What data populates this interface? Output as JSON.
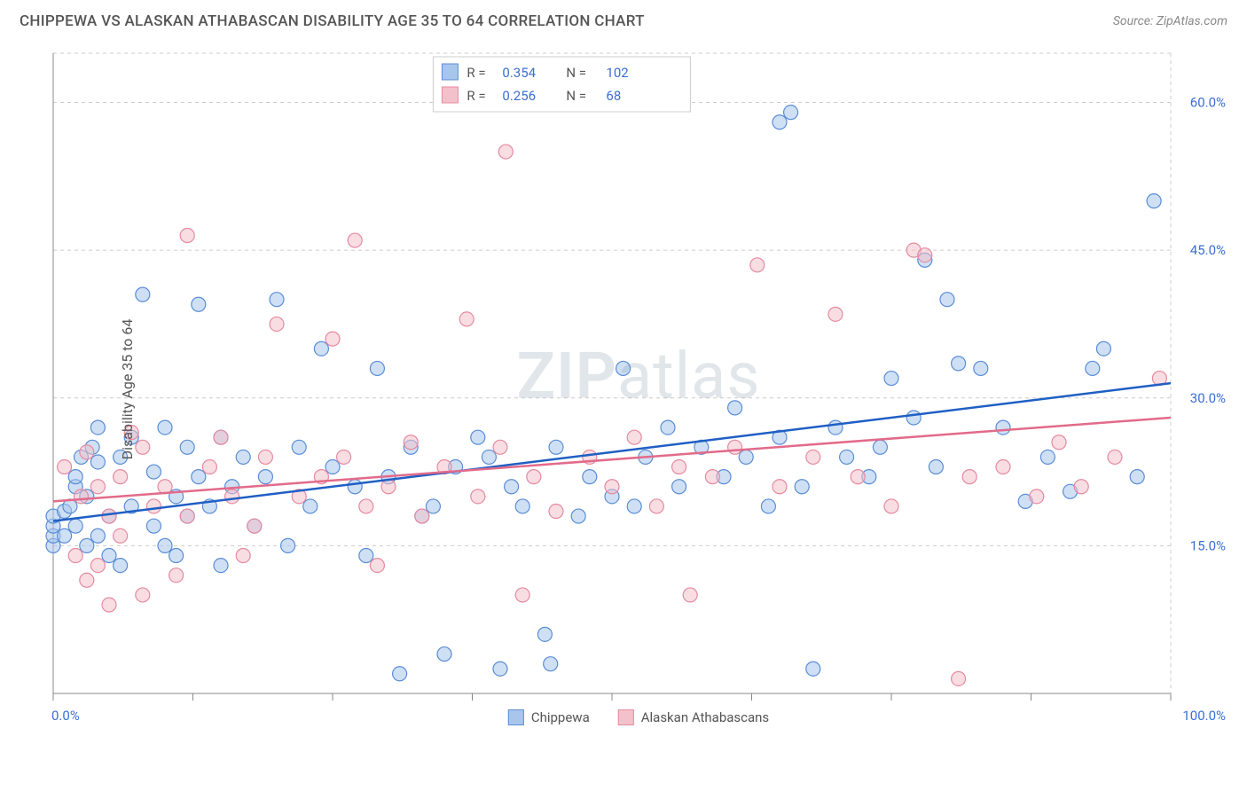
{
  "header": {
    "title": "CHIPPEWA VS ALASKAN ATHABASCAN DISABILITY AGE 35 TO 64 CORRELATION CHART",
    "source": "Source: ZipAtlas.com"
  },
  "chart": {
    "type": "scatter",
    "ylabel": "Disability Age 35 to 64",
    "watermark": "ZIPatlas",
    "background_color": "#ffffff",
    "grid_color": "#cccccc",
    "axis_color": "#888888",
    "value_color": "#3b6fd4",
    "xlim": [
      0,
      100
    ],
    "ylim": [
      0,
      65
    ],
    "x_tick_labels": {
      "left": "0.0%",
      "right": "100.0%"
    },
    "x_minor_ticks": [
      0,
      12.5,
      25,
      37.5,
      50,
      62.5,
      75,
      87.5,
      100
    ],
    "y_ticks": [
      {
        "v": 15,
        "label": "15.0%"
      },
      {
        "v": 30,
        "label": "30.0%"
      },
      {
        "v": 45,
        "label": "45.0%"
      },
      {
        "v": 60,
        "label": "60.0%"
      }
    ],
    "marker_radius": 8,
    "marker_opacity": 0.55,
    "series": [
      {
        "name": "Chippewa",
        "fill": "#a8c6ec",
        "stroke": "#5a8dd6",
        "line_color": "#1f5fc4",
        "R": "0.354",
        "N": "102",
        "trend": {
          "y_at_x0": 17.5,
          "y_at_x100": 31.5
        },
        "points": [
          [
            0,
            15
          ],
          [
            0,
            16
          ],
          [
            0,
            17
          ],
          [
            0,
            18
          ],
          [
            1,
            18.5
          ],
          [
            1,
            16
          ],
          [
            1.5,
            19
          ],
          [
            2,
            21
          ],
          [
            2,
            17
          ],
          [
            2,
            22
          ],
          [
            2.5,
            24
          ],
          [
            3,
            20
          ],
          [
            3,
            15
          ],
          [
            3.5,
            25
          ],
          [
            4,
            16
          ],
          [
            4,
            27
          ],
          [
            4,
            23.5
          ],
          [
            5,
            18
          ],
          [
            5,
            14
          ],
          [
            6,
            13
          ],
          [
            6,
            24
          ],
          [
            7,
            26
          ],
          [
            7,
            19
          ],
          [
            8,
            40.5
          ],
          [
            9,
            17
          ],
          [
            9,
            22.5
          ],
          [
            10,
            27
          ],
          [
            10,
            15
          ],
          [
            11,
            20
          ],
          [
            11,
            14
          ],
          [
            12,
            18
          ],
          [
            12,
            25
          ],
          [
            13,
            22
          ],
          [
            13,
            39.5
          ],
          [
            14,
            19
          ],
          [
            15,
            26
          ],
          [
            15,
            13
          ],
          [
            16,
            21
          ],
          [
            17,
            24
          ],
          [
            18,
            17
          ],
          [
            19,
            22
          ],
          [
            20,
            40
          ],
          [
            21,
            15
          ],
          [
            22,
            25
          ],
          [
            23,
            19
          ],
          [
            24,
            35
          ],
          [
            25,
            23
          ],
          [
            27,
            21
          ],
          [
            28,
            14
          ],
          [
            29,
            33
          ],
          [
            30,
            22
          ],
          [
            31,
            2
          ],
          [
            32,
            25
          ],
          [
            33,
            18
          ],
          [
            34,
            19
          ],
          [
            35,
            4
          ],
          [
            36,
            23
          ],
          [
            38,
            26
          ],
          [
            39,
            24
          ],
          [
            40,
            2.5
          ],
          [
            41,
            21
          ],
          [
            42,
            19
          ],
          [
            44,
            6
          ],
          [
            44.5,
            3
          ],
          [
            45,
            25
          ],
          [
            47,
            18
          ],
          [
            48,
            22
          ],
          [
            50,
            20
          ],
          [
            51,
            33
          ],
          [
            52,
            19
          ],
          [
            53,
            24
          ],
          [
            55,
            27
          ],
          [
            56,
            21
          ],
          [
            58,
            25
          ],
          [
            60,
            22
          ],
          [
            61,
            29
          ],
          [
            62,
            24
          ],
          [
            64,
            19
          ],
          [
            65,
            26
          ],
          [
            65,
            58
          ],
          [
            66,
            59
          ],
          [
            67,
            21
          ],
          [
            68,
            2.5
          ],
          [
            70,
            27
          ],
          [
            71,
            24
          ],
          [
            73,
            22
          ],
          [
            74,
            25
          ],
          [
            75,
            32
          ],
          [
            77,
            28
          ],
          [
            78,
            44
          ],
          [
            79,
            23
          ],
          [
            80,
            40
          ],
          [
            81,
            33.5
          ],
          [
            83,
            33
          ],
          [
            85,
            27
          ],
          [
            87,
            19.5
          ],
          [
            89,
            24
          ],
          [
            91,
            20.5
          ],
          [
            93,
            33
          ],
          [
            94,
            35
          ],
          [
            97,
            22
          ],
          [
            98.5,
            50
          ]
        ]
      },
      {
        "name": "Alaskan Athabascans",
        "fill": "#f3c1cb",
        "stroke": "#e68aa0",
        "line_color": "#e26a8a",
        "R": "0.256",
        "N": "68",
        "trend": {
          "y_at_x0": 19.5,
          "y_at_x100": 28.0
        },
        "points": [
          [
            1,
            23
          ],
          [
            2,
            14
          ],
          [
            2.5,
            20
          ],
          [
            3,
            24.5
          ],
          [
            3,
            11.5
          ],
          [
            4,
            21
          ],
          [
            4,
            13
          ],
          [
            5,
            18
          ],
          [
            5,
            9
          ],
          [
            6,
            22
          ],
          [
            6,
            16
          ],
          [
            7,
            26.5
          ],
          [
            8,
            10
          ],
          [
            8,
            25
          ],
          [
            9,
            19
          ],
          [
            10,
            21
          ],
          [
            11,
            12
          ],
          [
            12,
            18
          ],
          [
            12,
            46.5
          ],
          [
            14,
            23
          ],
          [
            15,
            26
          ],
          [
            16,
            20
          ],
          [
            17,
            14
          ],
          [
            18,
            17
          ],
          [
            19,
            24
          ],
          [
            20,
            37.5
          ],
          [
            22,
            20
          ],
          [
            24,
            22
          ],
          [
            25,
            36
          ],
          [
            26,
            24
          ],
          [
            27,
            46
          ],
          [
            28,
            19
          ],
          [
            29,
            13
          ],
          [
            30,
            21
          ],
          [
            32,
            25.5
          ],
          [
            33,
            18
          ],
          [
            35,
            23
          ],
          [
            37,
            38
          ],
          [
            38,
            20
          ],
          [
            40,
            25
          ],
          [
            40.5,
            55
          ],
          [
            42,
            10
          ],
          [
            43,
            22
          ],
          [
            45,
            18.5
          ],
          [
            48,
            24
          ],
          [
            50,
            21
          ],
          [
            52,
            26
          ],
          [
            54,
            19
          ],
          [
            56,
            23
          ],
          [
            57,
            10
          ],
          [
            59,
            22
          ],
          [
            61,
            25
          ],
          [
            63,
            43.5
          ],
          [
            65,
            21
          ],
          [
            68,
            24
          ],
          [
            70,
            38.5
          ],
          [
            72,
            22
          ],
          [
            75,
            19
          ],
          [
            77,
            45
          ],
          [
            78,
            44.5
          ],
          [
            81,
            1.5
          ],
          [
            82,
            22
          ],
          [
            85,
            23
          ],
          [
            88,
            20
          ],
          [
            90,
            25.5
          ],
          [
            92,
            21
          ],
          [
            95,
            24
          ],
          [
            99,
            32
          ]
        ]
      }
    ],
    "legend_top": {
      "swatch_size": 18,
      "series_refs": [
        0,
        1
      ]
    },
    "legend_bottom": {
      "series_refs": [
        0,
        1
      ]
    }
  }
}
